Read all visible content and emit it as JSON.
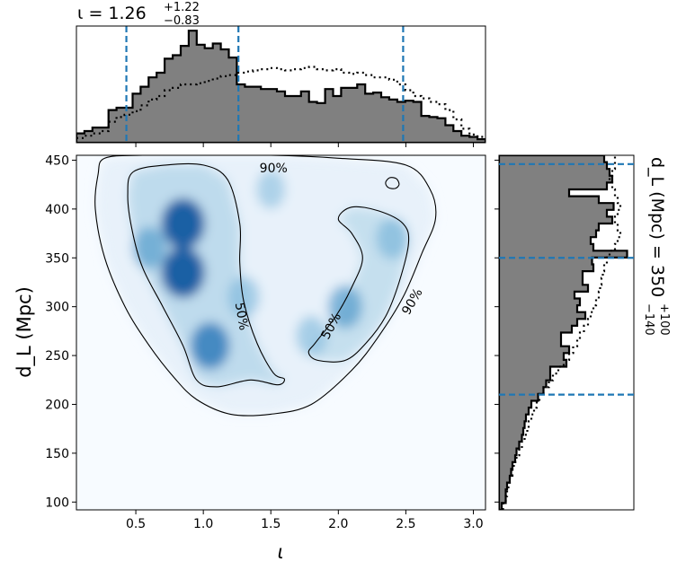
{
  "chart_data": {
    "type": "corner-plot",
    "main_panel": {
      "kind": "2d-density-heatmap-with-contours",
      "xlabel": "ι",
      "ylabel": "d_L (Mpc)",
      "xlim": [
        0.06,
        3.09
      ],
      "ylim": [
        92,
        455
      ],
      "xticks": [
        "0.5",
        "1.0",
        "1.5",
        "2.0",
        "2.5",
        "3.0"
      ],
      "yticks": [
        "100",
        "150",
        "200",
        "250",
        "300",
        "350",
        "400",
        "450"
      ],
      "colormap": "Blues",
      "density_peaks": [
        {
          "x": 0.85,
          "y": 385,
          "strength": 1.0
        },
        {
          "x": 0.85,
          "y": 335,
          "strength": 1.0
        },
        {
          "x": 1.05,
          "y": 260,
          "strength": 0.75
        },
        {
          "x": 0.6,
          "y": 360,
          "strength": 0.45
        },
        {
          "x": 1.3,
          "y": 310,
          "strength": 0.35
        },
        {
          "x": 2.05,
          "y": 300,
          "strength": 0.5
        },
        {
          "x": 2.4,
          "y": 370,
          "strength": 0.4
        },
        {
          "x": 1.8,
          "y": 270,
          "strength": 0.3
        },
        {
          "x": 1.5,
          "y": 420,
          "strength": 0.2
        }
      ],
      "contours": [
        {
          "label": "90%",
          "label_positions": [
            {
              "x": 1.52,
              "y": 441
            },
            {
              "x": 2.55,
              "y": 305
            }
          ],
          "polygon": [
            [
              0.27,
              452
            ],
            [
              0.55,
              455
            ],
            [
              1.0,
              455
            ],
            [
              1.5,
              455
            ],
            [
              2.0,
              452
            ],
            [
              2.5,
              445
            ],
            [
              2.68,
              420
            ],
            [
              2.72,
              390
            ],
            [
              2.62,
              355
            ],
            [
              2.48,
              310
            ],
            [
              2.3,
              270
            ],
            [
              2.1,
              235
            ],
            [
              1.8,
              200
            ],
            [
              1.5,
              190
            ],
            [
              1.2,
              190
            ],
            [
              0.95,
              205
            ],
            [
              0.78,
              228
            ],
            [
              0.6,
              260
            ],
            [
              0.42,
              300
            ],
            [
              0.27,
              350
            ],
            [
              0.2,
              400
            ],
            [
              0.22,
              435
            ],
            [
              0.27,
              452
            ]
          ]
        },
        {
          "label": "50%",
          "label_positions": [
            {
              "x": 1.28,
              "y": 290
            },
            {
              "x": 1.95,
              "y": 280
            }
          ],
          "polygon": [
            [
              0.48,
              438
            ],
            [
              0.72,
              445
            ],
            [
              1.0,
              445
            ],
            [
              1.18,
              430
            ],
            [
              1.27,
              385
            ],
            [
              1.27,
              345
            ],
            [
              1.3,
              305
            ],
            [
              1.4,
              262
            ],
            [
              1.52,
              232
            ],
            [
              1.6,
              226
            ],
            [
              1.55,
              220
            ],
            [
              1.35,
              225
            ],
            [
              1.1,
              218
            ],
            [
              0.95,
              225
            ],
            [
              0.85,
              260
            ],
            [
              0.7,
              300
            ],
            [
              0.55,
              340
            ],
            [
              0.47,
              380
            ],
            [
              0.44,
              415
            ],
            [
              0.48,
              438
            ]
          ]
        },
        {
          "label": "50%",
          "label_positions": [],
          "polygon": [
            [
              1.83,
              263
            ],
            [
              1.78,
              253
            ],
            [
              1.85,
              245
            ],
            [
              2.05,
              245
            ],
            [
              2.2,
              262
            ],
            [
              2.35,
              290
            ],
            [
              2.45,
              325
            ],
            [
              2.52,
              365
            ],
            [
              2.48,
              385
            ],
            [
              2.3,
              398
            ],
            [
              2.1,
              402
            ],
            [
              2.0,
              390
            ],
            [
              2.1,
              375
            ],
            [
              2.18,
              350
            ],
            [
              2.1,
              320
            ],
            [
              1.98,
              290
            ],
            [
              1.83,
              263
            ]
          ]
        },
        {
          "label": "",
          "label_positions": [],
          "polygon": [
            [
              2.35,
              427
            ],
            [
              2.38,
              432
            ],
            [
              2.43,
              431
            ],
            [
              2.45,
              425
            ],
            [
              2.42,
              421
            ],
            [
              2.37,
              422
            ],
            [
              2.35,
              427
            ]
          ]
        }
      ]
    },
    "top_histogram": {
      "title": "ι = 1.26",
      "title_sup": "+1.22",
      "title_sub": "−0.83",
      "bin_edges_range": [
        0.06,
        3.09
      ],
      "solid_counts": [
        0.08,
        0.1,
        0.13,
        0.13,
        0.28,
        0.3,
        0.3,
        0.42,
        0.48,
        0.56,
        0.6,
        0.72,
        0.75,
        0.83,
        0.96,
        0.84,
        0.81,
        0.85,
        0.8,
        0.73,
        0.5,
        0.48,
        0.48,
        0.46,
        0.46,
        0.44,
        0.4,
        0.4,
        0.44,
        0.35,
        0.34,
        0.46,
        0.4,
        0.47,
        0.47,
        0.5,
        0.42,
        0.43,
        0.39,
        0.37,
        0.35,
        0.36,
        0.35,
        0.23,
        0.22,
        0.21,
        0.15,
        0.1,
        0.06,
        0.05,
        0.03
      ],
      "dotted_counts": [
        0.04,
        0.06,
        0.08,
        0.1,
        0.18,
        0.22,
        0.24,
        0.27,
        0.32,
        0.37,
        0.4,
        0.45,
        0.47,
        0.5,
        0.5,
        0.51,
        0.53,
        0.55,
        0.57,
        0.58,
        0.6,
        0.61,
        0.62,
        0.63,
        0.64,
        0.63,
        0.62,
        0.63,
        0.64,
        0.65,
        0.63,
        0.62,
        0.63,
        0.6,
        0.59,
        0.6,
        0.58,
        0.56,
        0.56,
        0.54,
        0.5,
        0.45,
        0.4,
        0.38,
        0.35,
        0.33,
        0.28,
        0.2,
        0.12,
        0.07,
        0.05
      ],
      "quantile_lines": [
        0.43,
        1.26,
        2.48
      ]
    },
    "right_histogram": {
      "title": "d_L (Mpc) = 350",
      "title_sup": "+100",
      "title_sub": "−140",
      "bin_edges_range": [
        92,
        455
      ],
      "solid_counts": [
        0.02,
        0.05,
        0.05,
        0.06,
        0.08,
        0.09,
        0.1,
        0.12,
        0.13,
        0.15,
        0.17,
        0.18,
        0.19,
        0.2,
        0.22,
        0.24,
        0.29,
        0.33,
        0.35,
        0.38,
        0.38,
        0.5,
        0.48,
        0.52,
        0.46,
        0.46,
        0.54,
        0.58,
        0.64,
        0.58,
        0.6,
        0.56,
        0.66,
        0.62,
        0.62,
        0.7,
        0.69,
        0.95,
        0.7,
        0.68,
        0.72,
        0.74,
        0.84,
        0.8,
        0.85,
        0.74,
        0.52,
        0.8,
        0.84,
        0.82,
        0.8,
        0.78
      ],
      "dotted_counts": [
        0.03,
        0.05,
        0.06,
        0.07,
        0.08,
        0.1,
        0.11,
        0.13,
        0.15,
        0.17,
        0.19,
        0.21,
        0.22,
        0.24,
        0.26,
        0.28,
        0.3,
        0.33,
        0.37,
        0.4,
        0.44,
        0.48,
        0.52,
        0.55,
        0.58,
        0.6,
        0.63,
        0.66,
        0.68,
        0.7,
        0.72,
        0.74,
        0.75,
        0.76,
        0.77,
        0.78,
        0.8,
        0.82,
        0.86,
        0.88,
        0.9,
        0.88,
        0.86,
        0.88,
        0.9,
        0.88,
        0.86,
        0.84,
        0.82,
        0.84,
        0.86,
        0.86
      ],
      "quantile_lines": [
        210,
        350,
        446
      ]
    },
    "colors": {
      "hist_fill": "#808080",
      "hist_edge": "#000000",
      "quantile_line": "#1f77b4",
      "contour": "#000000"
    }
  }
}
